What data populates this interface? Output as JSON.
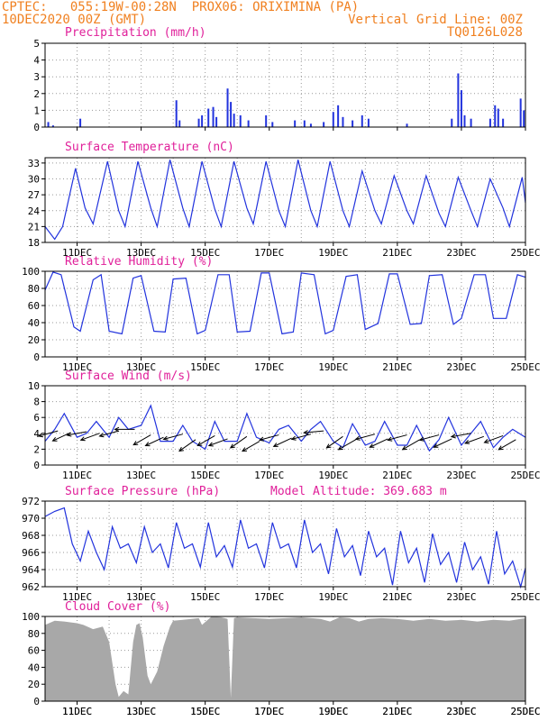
{
  "header": {
    "left_line1": "CPTEC:   055:19W-00:28N  PROX06: ORIXIMINA (PA)",
    "left_line2": "10DEC2020 00Z (GMT)",
    "right_line1": "Vertical Grid Line: 00Z",
    "right_line2": "TQ0126L028"
  },
  "colors": {
    "header": "#f08020",
    "title": "#e0209a",
    "series": "#2233dd",
    "wind_arrow": "#000000",
    "cloud": "#a8a8a8",
    "grid": "#999999"
  },
  "x_axis": {
    "start_day": 10,
    "end_day": 25,
    "tick_labels": [
      "11DEC",
      "13DEC",
      "15DEC",
      "17DEC",
      "19DEC",
      "21DEC",
      "23DEC",
      "25DEC"
    ]
  },
  "chart_data": [
    {
      "type": "bar",
      "title": "Precipitation (mm/h)",
      "ylim": [
        0,
        5
      ],
      "yticks": [
        0,
        1,
        2,
        3,
        4,
        5
      ],
      "x_unit": "day of December 2020",
      "points": [
        [
          10.1,
          0.3
        ],
        [
          10.25,
          0.1
        ],
        [
          11.1,
          0.5
        ],
        [
          14.1,
          1.6
        ],
        [
          14.2,
          0.4
        ],
        [
          14.8,
          0.5
        ],
        [
          14.9,
          0.7
        ],
        [
          15.1,
          1.1
        ],
        [
          15.25,
          1.2
        ],
        [
          15.35,
          0.6
        ],
        [
          15.7,
          2.3
        ],
        [
          15.8,
          1.5
        ],
        [
          15.9,
          0.8
        ],
        [
          16.1,
          0.7
        ],
        [
          16.35,
          0.4
        ],
        [
          16.9,
          0.7
        ],
        [
          17.1,
          0.3
        ],
        [
          17.8,
          0.4
        ],
        [
          18.1,
          0.4
        ],
        [
          18.3,
          0.2
        ],
        [
          18.7,
          0.3
        ],
        [
          19.0,
          0.9
        ],
        [
          19.15,
          1.3
        ],
        [
          19.3,
          0.6
        ],
        [
          19.6,
          0.4
        ],
        [
          19.9,
          0.7
        ],
        [
          20.1,
          0.5
        ],
        [
          21.3,
          0.2
        ],
        [
          22.7,
          0.5
        ],
        [
          22.9,
          3.2
        ],
        [
          23.0,
          2.2
        ],
        [
          23.1,
          0.7
        ],
        [
          23.3,
          0.5
        ],
        [
          23.9,
          0.5
        ],
        [
          24.05,
          1.3
        ],
        [
          24.15,
          1.1
        ],
        [
          24.3,
          0.5
        ],
        [
          24.85,
          1.7
        ],
        [
          24.95,
          1.0
        ]
      ]
    },
    {
      "type": "line",
      "title": "Surface Temperature (nC)",
      "ylim": [
        18,
        34
      ],
      "yticks": [
        18,
        21,
        24,
        27,
        30,
        33
      ],
      "x_unit": "day of December 2020",
      "x": [
        10.0,
        10.3,
        10.55,
        10.95,
        11.25,
        11.5,
        11.95,
        12.3,
        12.5,
        12.9,
        13.3,
        13.5,
        13.9,
        14.3,
        14.5,
        14.9,
        15.3,
        15.5,
        15.9,
        16.3,
        16.5,
        16.9,
        17.3,
        17.5,
        17.9,
        18.3,
        18.5,
        18.9,
        19.3,
        19.5,
        19.9,
        20.3,
        20.5,
        20.9,
        21.3,
        21.5,
        21.9,
        22.3,
        22.5,
        22.9,
        23.3,
        23.5,
        23.9,
        24.3,
        24.5,
        24.9,
        25.0
      ],
      "y": [
        21,
        18.6,
        21,
        32,
        24.5,
        21.5,
        33.3,
        24,
        21,
        33.3,
        24.5,
        21,
        33.6,
        24.5,
        21,
        33.3,
        24.3,
        21,
        33.3,
        24.5,
        21.5,
        33.3,
        24,
        21,
        33.6,
        24,
        21,
        33.3,
        24,
        21,
        31.5,
        24,
        21.5,
        30.6,
        24,
        21.5,
        30.6,
        23.5,
        21,
        30.3,
        24,
        21,
        30,
        24.5,
        21,
        30.3,
        25.5
      ]
    },
    {
      "type": "line",
      "title": "Relative Humidity (%)",
      "ylim": [
        0,
        100
      ],
      "yticks": [
        0,
        20,
        40,
        60,
        80,
        100
      ],
      "x_unit": "day of December 2020",
      "x": [
        10.0,
        10.25,
        10.5,
        10.9,
        11.1,
        11.5,
        11.75,
        12.0,
        12.4,
        12.75,
        13.0,
        13.4,
        13.75,
        14.0,
        14.4,
        14.75,
        15.0,
        15.4,
        15.75,
        16.0,
        16.4,
        16.75,
        17.0,
        17.4,
        17.75,
        18.0,
        18.4,
        18.75,
        19.0,
        19.4,
        19.75,
        20.0,
        20.4,
        20.75,
        21.0,
        21.4,
        21.75,
        22.0,
        22.4,
        22.75,
        23.0,
        23.4,
        23.75,
        24.0,
        24.4,
        24.75,
        25.0
      ],
      "y": [
        78,
        99,
        96,
        35,
        30,
        90,
        96,
        30,
        27,
        92,
        95,
        30,
        29,
        91,
        92,
        27,
        31,
        96,
        96,
        29,
        30,
        98,
        98,
        27,
        29,
        98,
        96,
        27,
        31,
        94,
        96,
        32,
        39,
        97,
        97,
        38,
        39,
        95,
        96,
        38,
        45,
        96,
        96,
        45,
        45,
        96,
        93
      ]
    },
    {
      "type": "line",
      "title": "Surface Wind (m/s)",
      "ylim": [
        0,
        10
      ],
      "yticks": [
        0,
        2,
        4,
        6,
        8,
        10
      ],
      "x_unit": "day of December 2020",
      "x": [
        10.0,
        10.3,
        10.6,
        11.0,
        11.3,
        11.6,
        12.0,
        12.3,
        12.6,
        13.0,
        13.3,
        13.6,
        14.0,
        14.3,
        14.6,
        15.0,
        15.3,
        15.6,
        16.0,
        16.3,
        16.6,
        17.0,
        17.3,
        17.6,
        18.0,
        18.3,
        18.6,
        19.0,
        19.3,
        19.6,
        20.0,
        20.3,
        20.6,
        21.0,
        21.3,
        21.6,
        22.0,
        22.3,
        22.6,
        23.0,
        23.3,
        23.6,
        24.0,
        24.3,
        24.6,
        25.0
      ],
      "y": [
        3,
        4.5,
        6.5,
        3.5,
        4,
        5.5,
        3.5,
        6,
        4.5,
        5,
        7.5,
        3,
        3,
        5,
        3,
        2,
        5.5,
        3,
        3,
        6.5,
        3.5,
        2.8,
        4.5,
        5,
        3,
        4.5,
        5.5,
        3,
        2.2,
        5.2,
        2.5,
        3,
        5.5,
        2.5,
        2.5,
        5,
        1.8,
        3.2,
        6,
        2.5,
        4,
        5.5,
        2.2,
        3.5,
        4.5,
        3.5
      ],
      "arrows": [
        [
          10.4,
          4.3,
          165
        ],
        [
          10.8,
          4.1,
          155
        ],
        [
          11.3,
          4.2,
          170
        ],
        [
          11.7,
          4.0,
          160
        ],
        [
          12.3,
          4.3,
          165
        ],
        [
          12.8,
          4.5,
          180
        ],
        [
          13.3,
          3.8,
          150
        ],
        [
          13.7,
          3.5,
          155
        ],
        [
          14.3,
          3.9,
          165
        ],
        [
          14.7,
          3.2,
          145
        ],
        [
          15.3,
          3.7,
          150
        ],
        [
          15.7,
          3.3,
          160
        ],
        [
          16.3,
          3.6,
          145
        ],
        [
          16.7,
          3.0,
          150
        ],
        [
          17.3,
          3.8,
          165
        ],
        [
          17.7,
          3.4,
          155
        ],
        [
          18.3,
          3.9,
          165
        ],
        [
          18.7,
          4.3,
          175
        ],
        [
          19.3,
          3.6,
          145
        ],
        [
          19.7,
          3.2,
          150
        ],
        [
          20.3,
          3.9,
          165
        ],
        [
          20.7,
          3.3,
          155
        ],
        [
          21.3,
          3.8,
          165
        ],
        [
          21.7,
          3.2,
          150
        ],
        [
          22.3,
          3.8,
          165
        ],
        [
          22.7,
          3.3,
          155
        ],
        [
          23.3,
          4.0,
          170
        ],
        [
          23.7,
          3.6,
          160
        ],
        [
          24.3,
          3.7,
          160
        ],
        [
          24.7,
          3.2,
          150
        ]
      ]
    },
    {
      "type": "line",
      "title": "Surface Pressure (hPa)",
      "annotation": "Model Altitude: 369.683 m",
      "ylim": [
        962,
        972
      ],
      "yticks": [
        962,
        964,
        966,
        968,
        970,
        972
      ],
      "x_unit": "day of December 2020",
      "x": [
        10.0,
        10.3,
        10.6,
        10.85,
        11.1,
        11.35,
        11.6,
        11.85,
        12.1,
        12.35,
        12.6,
        12.85,
        13.1,
        13.35,
        13.6,
        13.85,
        14.1,
        14.35,
        14.6,
        14.85,
        15.1,
        15.35,
        15.6,
        15.85,
        16.1,
        16.35,
        16.6,
        16.85,
        17.1,
        17.35,
        17.6,
        17.85,
        18.1,
        18.35,
        18.6,
        18.85,
        19.1,
        19.35,
        19.6,
        19.85,
        20.1,
        20.35,
        20.6,
        20.85,
        21.1,
        21.35,
        21.6,
        21.85,
        22.1,
        22.35,
        22.6,
        22.85,
        23.1,
        23.35,
        23.6,
        23.85,
        24.1,
        24.35,
        24.6,
        24.85,
        25.0
      ],
      "y": [
        970.2,
        970.8,
        971.2,
        967,
        965,
        968.5,
        966,
        964,
        969,
        966.5,
        967,
        964.8,
        969,
        966,
        967,
        964.2,
        969.5,
        966.5,
        967,
        964.3,
        969.5,
        965.5,
        966.8,
        964.3,
        969.8,
        966.5,
        967,
        964.2,
        969.5,
        966.5,
        967,
        964.2,
        969.8,
        966,
        967,
        963.5,
        968.8,
        965.5,
        966.8,
        963.3,
        968.5,
        965.5,
        966.5,
        962.2,
        968.5,
        964.8,
        966.5,
        962.5,
        968.2,
        964.6,
        966,
        962.5,
        967.2,
        964,
        965.5,
        962.3,
        968.5,
        963.5,
        965,
        962,
        964.2
      ]
    },
    {
      "type": "area",
      "title": "Cloud Cover (%)",
      "ylim": [
        0,
        100
      ],
      "yticks": [
        0,
        20,
        40,
        60,
        80,
        100
      ],
      "x_unit": "day of December 2020",
      "x": [
        10.0,
        10.3,
        10.6,
        11.0,
        11.2,
        11.5,
        11.8,
        12.0,
        12.2,
        12.3,
        12.45,
        12.6,
        12.75,
        12.85,
        12.95,
        13.05,
        13.2,
        13.3,
        13.5,
        13.7,
        13.9,
        14.0,
        14.3,
        14.8,
        14.9,
        15.2,
        15.5,
        15.7,
        15.8,
        15.9,
        16.0,
        16.5,
        17.0,
        17.5,
        18.0,
        18.6,
        18.9,
        19.2,
        19.5,
        19.8,
        20.1,
        20.5,
        21.0,
        21.5,
        22.0,
        22.5,
        23.0,
        23.5,
        24.0,
        24.5,
        25.0
      ],
      "y": [
        90,
        95,
        94,
        92,
        90,
        85,
        88,
        70,
        20,
        5,
        12,
        8,
        70,
        90,
        92,
        75,
        30,
        20,
        35,
        65,
        88,
        95,
        96,
        98,
        90,
        100,
        99,
        97,
        4,
        98,
        99,
        98,
        97,
        98,
        99,
        97,
        94,
        99,
        98,
        94,
        97,
        98,
        97,
        95,
        97,
        95,
        96,
        94,
        96,
        95,
        98
      ]
    }
  ]
}
